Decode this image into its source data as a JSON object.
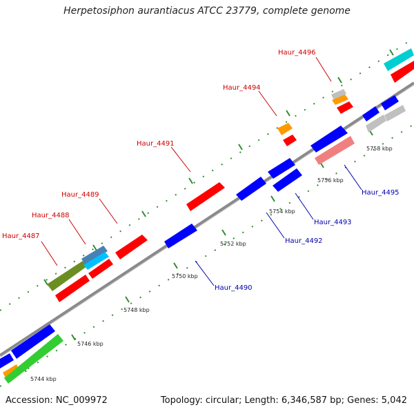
{
  "title": "Herpetosiphon aurantiacus ATCC 23779, complete genome",
  "footer": {
    "accession": "Accession: NC_009972",
    "topology": "Topology: circular; Length: 6,346,587 bp; Genes: 5,042"
  },
  "colors": {
    "backbone": "#8a8a8a",
    "label_forward": "#cc0000",
    "label_reverse": "#0000aa",
    "tick_green": "#228b22"
  },
  "tick_labels": [
    "5744 kbp",
    "5746 kbp",
    "5748 kbp",
    "5750 kbp",
    "5752 kbp",
    "5754 kbp",
    "5756 kbp",
    "5758 kbp"
  ],
  "gene_labels": [
    {
      "name": "Haur_4487",
      "strand": "forward"
    },
    {
      "name": "Haur_4488",
      "strand": "forward"
    },
    {
      "name": "Haur_4489",
      "strand": "forward"
    },
    {
      "name": "Haur_4491",
      "strand": "forward"
    },
    {
      "name": "Haur_4494",
      "strand": "forward"
    },
    {
      "name": "Haur_4496",
      "strand": "forward"
    },
    {
      "name": "Haur_4490",
      "strand": "reverse"
    },
    {
      "name": "Haur_4492",
      "strand": "reverse"
    },
    {
      "name": "Haur_4493",
      "strand": "reverse"
    },
    {
      "name": "Haur_4495",
      "strand": "reverse"
    }
  ]
}
